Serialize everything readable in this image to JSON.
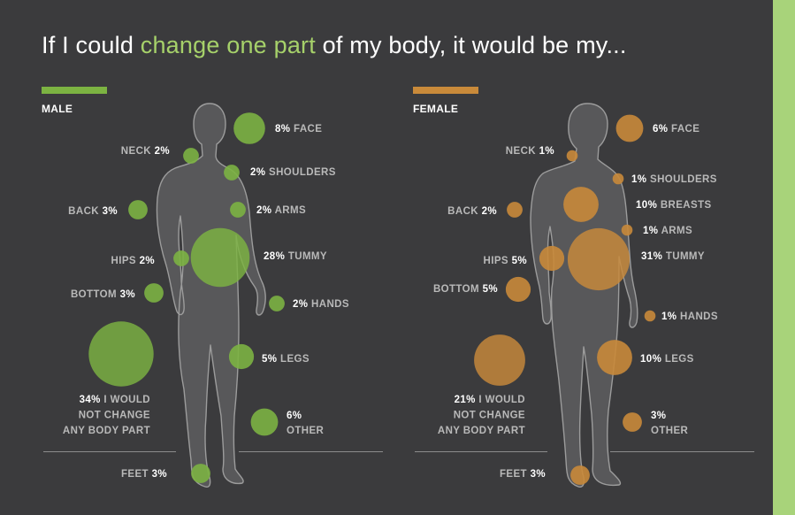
{
  "title": {
    "prefix": "If I could ",
    "highlight": "change one part",
    "suffix": " of my body, it would be my..."
  },
  "colors": {
    "background": "#3b3b3d",
    "male": "#7cb342",
    "female": "#c98a3a",
    "male_title": "#a6d16a",
    "label_category": "#b9b9b9",
    "label_value": "#ffffff",
    "side_stripe": "#a8d37a"
  },
  "chart_data": [
    {
      "type": "bubble",
      "group": "MALE",
      "color": "#7cb342",
      "categories": [
        {
          "name": "FACE",
          "value": 8
        },
        {
          "name": "NECK",
          "value": 2
        },
        {
          "name": "SHOULDERS",
          "value": 2
        },
        {
          "name": "BACK",
          "value": 3
        },
        {
          "name": "ARMS",
          "value": 2
        },
        {
          "name": "HIPS",
          "value": 2
        },
        {
          "name": "TUMMY",
          "value": 28
        },
        {
          "name": "BOTTOM",
          "value": 3
        },
        {
          "name": "HANDS",
          "value": 2
        },
        {
          "name": "I WOULD NOT CHANGE ANY BODY PART",
          "value": 34
        },
        {
          "name": "LEGS",
          "value": 5
        },
        {
          "name": "OTHER",
          "value": 6
        },
        {
          "name": "FEET",
          "value": 3
        }
      ]
    },
    {
      "type": "bubble",
      "group": "FEMALE",
      "color": "#c98a3a",
      "categories": [
        {
          "name": "FACE",
          "value": 6
        },
        {
          "name": "NECK",
          "value": 1
        },
        {
          "name": "SHOULDERS",
          "value": 1
        },
        {
          "name": "BACK",
          "value": 2
        },
        {
          "name": "BREASTS",
          "value": 10
        },
        {
          "name": "ARMS",
          "value": 1
        },
        {
          "name": "HIPS",
          "value": 5
        },
        {
          "name": "TUMMY",
          "value": 31
        },
        {
          "name": "BOTTOM",
          "value": 5
        },
        {
          "name": "HANDS",
          "value": 1
        },
        {
          "name": "I WOULD NOT CHANGE ANY BODY PART",
          "value": 21
        },
        {
          "name": "LEGS",
          "value": 10
        },
        {
          "name": "OTHER",
          "value": 3
        },
        {
          "name": "FEET",
          "value": 3
        }
      ]
    }
  ]
}
